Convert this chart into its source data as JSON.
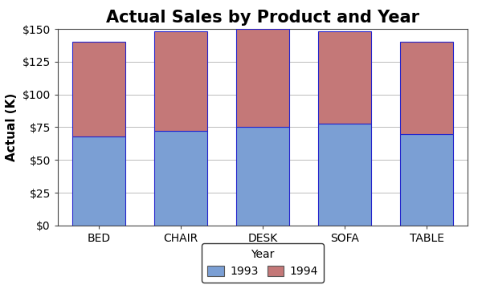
{
  "categories": [
    "BED",
    "CHAIR",
    "DESK",
    "SOFA",
    "TABLE"
  ],
  "values_1993": [
    68,
    72,
    75,
    78,
    70
  ],
  "values_1994": [
    72,
    76,
    75,
    70,
    70
  ],
  "color_1993": "#7b9fd4",
  "color_1994": "#c47878",
  "title": "Actual Sales by Product and Year",
  "ylabel": "Actual (K)",
  "ylim": [
    0,
    150
  ],
  "yticks": [
    0,
    25,
    50,
    75,
    100,
    125,
    150
  ],
  "ytick_labels": [
    "$0",
    "$25",
    "$50",
    "$75",
    "$100",
    "$125",
    "$150"
  ],
  "legend_title": "Year",
  "legend_labels": [
    "1993",
    "1994"
  ],
  "background_color": "#ffffff",
  "plot_bg_color": "#ffffff",
  "bar_edge_color": "#2222cc",
  "bar_edge_width": 0.8,
  "bar_width": 0.65,
  "title_fontsize": 15,
  "axis_fontsize": 11,
  "tick_fontsize": 10,
  "grid_color": "#bbbbbb",
  "grid_linewidth": 0.7
}
